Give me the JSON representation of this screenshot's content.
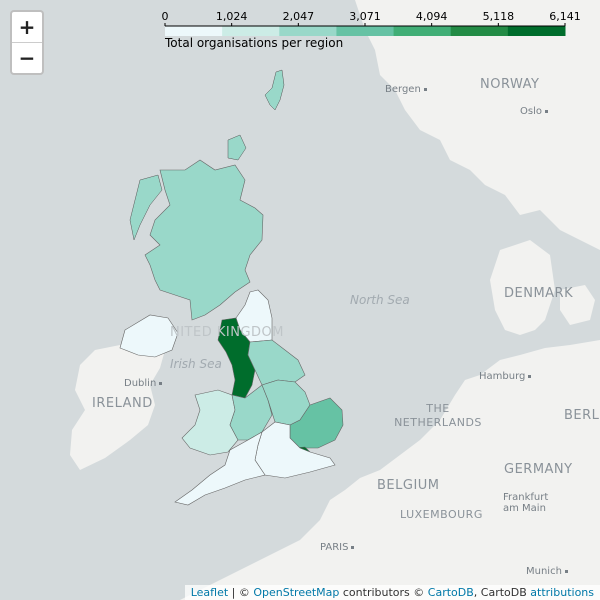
{
  "zoom": {
    "in_label": "+",
    "out_label": "−"
  },
  "legend": {
    "ticks": [
      "0",
      "1,024",
      "2,047",
      "3,071",
      "4,094",
      "5,118",
      "6,141"
    ],
    "caption": "Total organisations per region",
    "colors": [
      "#edf8fb",
      "#ccece6",
      "#99d8c9",
      "#66c2a4",
      "#41ae76",
      "#238b45",
      "#006d2c"
    ]
  },
  "map_labels": {
    "norway": "NORWAY",
    "bergen": "Bergen",
    "oslo": "Oslo",
    "denmark": "DENMARK",
    "north_sea": "North Sea",
    "united_kingdom": "NITED KINGDOM",
    "irish_sea": "Irish Sea",
    "dublin": "Dublin",
    "ireland": "IRELAND",
    "hamburg": "Hamburg",
    "netherlands": "THE NETHERLANDS",
    "berlin": "BERLIN",
    "germany": "GERMANY",
    "belgium": "BELGIUM",
    "frankfurt": "Frankfurt am Main",
    "luxembourg": "LUXEMBOURG",
    "paris": "PARIS",
    "munich": "Munich"
  },
  "regions": [
    {
      "name": "Scotland",
      "color": "#99d8c9"
    },
    {
      "name": "North East",
      "color": "#edf8fb"
    },
    {
      "name": "North West",
      "color": "#006d2c"
    },
    {
      "name": "Yorkshire and the Humber",
      "color": "#99d8c9"
    },
    {
      "name": "Northern Ireland",
      "color": "#edf8fb"
    },
    {
      "name": "Wales",
      "color": "#ccece6"
    },
    {
      "name": "West Midlands",
      "color": "#99d8c9"
    },
    {
      "name": "East Midlands",
      "color": "#99d8c9"
    },
    {
      "name": "East of England",
      "color": "#66c2a4"
    },
    {
      "name": "London",
      "color": "#006d2c"
    },
    {
      "name": "South East",
      "color": "#edf8fb"
    },
    {
      "name": "South West",
      "color": "#edf8fb"
    }
  ],
  "attribution": {
    "leaflet": "Leaflet",
    "sep1": " | © ",
    "osm": "OpenStreetMap",
    "contrib": " contributors © ",
    "carto": "CartoDB",
    "carto2": ", CartoDB ",
    "attributions": "attributions"
  }
}
